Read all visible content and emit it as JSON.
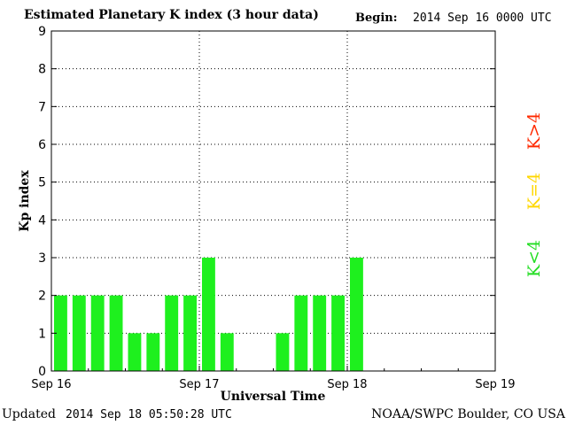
{
  "header": {
    "title": "Estimated Planetary K index (3 hour data)",
    "begin_label": "Begin:",
    "begin_value": "2014 Sep 16 0000 UTC"
  },
  "footer": {
    "updated_label": "Updated",
    "updated_value": "2014 Sep 18 05:50:28 UTC",
    "credit": "NOAA/SWPC Boulder, CO USA"
  },
  "colors": {
    "bar_low": "#1ef01e",
    "legend_low": "#22dd22",
    "legend_mid": "#ffd700",
    "legend_high": "#ff2a00"
  },
  "chart_data": {
    "type": "bar",
    "title": "Estimated Planetary K index (3 hour data)",
    "xlabel": "Universal Time",
    "ylabel": "Kp index",
    "ylim": [
      0,
      9
    ],
    "yticks": [
      0,
      1,
      2,
      3,
      4,
      5,
      6,
      7,
      8,
      9
    ],
    "x_range_days": [
      0,
      3
    ],
    "x_ticks": [
      {
        "day": 0,
        "label": "Sep 16"
      },
      {
        "day": 1,
        "label": "Sep 17"
      },
      {
        "day": 2,
        "label": "Sep 18"
      },
      {
        "day": 3,
        "label": "Sep 19"
      }
    ],
    "bars_per_day": 8,
    "values": [
      2,
      2,
      2,
      2,
      1,
      1,
      2,
      2,
      3,
      1,
      null,
      null,
      1,
      2,
      2,
      2,
      3
    ],
    "grid": true,
    "legend": {
      "placement": "right",
      "entries": [
        {
          "label": "K<4",
          "color": "#22dd22"
        },
        {
          "label": "K=4",
          "color": "#ffd700"
        },
        {
          "label": "K>4",
          "color": "#ff2a00"
        }
      ]
    }
  }
}
